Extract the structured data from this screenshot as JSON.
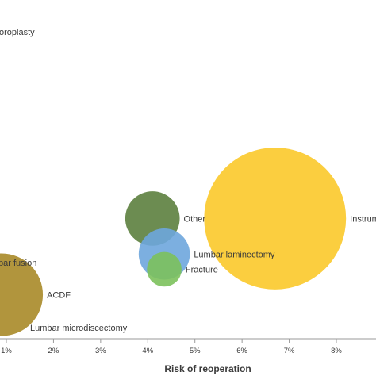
{
  "chart_data": {
    "type": "bubble",
    "xlabel": "Risk of reoperation",
    "xlim": [
      0.9,
      8.7
    ],
    "ylim": [
      0,
      10
    ],
    "x_ticks": [
      {
        "value": 1,
        "label": "1%"
      },
      {
        "value": 2,
        "label": "2%"
      },
      {
        "value": 3,
        "label": "3%"
      },
      {
        "value": 4,
        "label": "4%"
      },
      {
        "value": 5,
        "label": "5%"
      },
      {
        "value": 6,
        "label": "6%"
      },
      {
        "value": 7,
        "label": "7%"
      },
      {
        "value": 8,
        "label": "8%"
      }
    ],
    "points": [
      {
        "name": "ACDF",
        "x": 0.9,
        "y": 1.3,
        "size": 1.0,
        "color": "#a88a28",
        "label": "ACDF"
      },
      {
        "name": "Instrumented",
        "x": 6.7,
        "y": 3.55,
        "size": 1.72,
        "color": "#fbc92a",
        "label": "Instrumented"
      },
      {
        "name": "Other",
        "x": 4.1,
        "y": 3.55,
        "size": 0.66,
        "color": "#5c7f3e",
        "label": "Other"
      },
      {
        "name": "Lumbar laminectomy",
        "x": 4.35,
        "y": 2.5,
        "size": 0.62,
        "color": "#6ea6dd",
        "label": "Lumbar laminectomy"
      },
      {
        "name": "Fracture",
        "x": 4.35,
        "y": 2.05,
        "size": 0.42,
        "color": "#7cc15c",
        "label": "Fracture"
      }
    ],
    "extra_labels": [
      {
        "text": "oroplasty"
      },
      {
        "text": "bar fusion"
      },
      {
        "text": "Lumbar microdiscectomy"
      }
    ]
  }
}
